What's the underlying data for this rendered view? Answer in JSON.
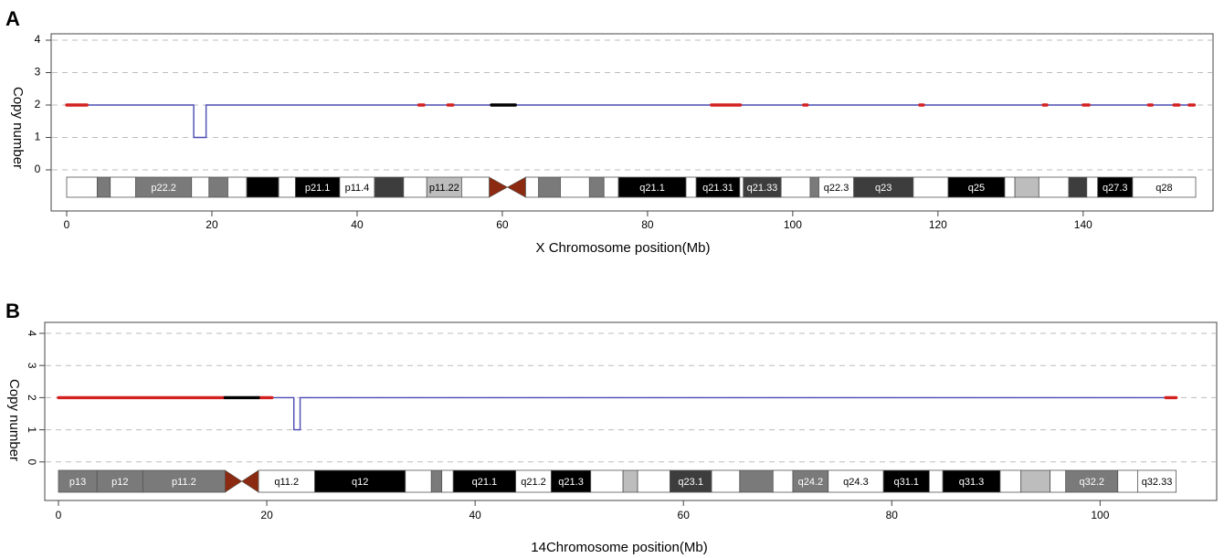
{
  "colors": {
    "cn_line": "#4b4bb4",
    "loss_marker": "#d42020",
    "centromere_marker": "#000000",
    "grid": "#bdbdbd",
    "centromere_fill": "#8b2a10",
    "band_black": "#000000",
    "band_dark": "#3d3d3d",
    "band_mid": "#7a7a7a",
    "band_light": "#bdbdbd",
    "band_white": "#ffffff"
  },
  "chart_data": [
    {
      "panel_label": "A",
      "type": "line",
      "ylabel": "Copy number",
      "xlabel": "X Chromosome position(Mb)",
      "xlim": [
        0,
        156
      ],
      "ylim": [
        0,
        4
      ],
      "x_ticks": [
        "0",
        "20",
        "40",
        "60",
        "80",
        "100",
        "120",
        "140"
      ],
      "y_ticks": [
        "0",
        "1",
        "2",
        "3",
        "4"
      ],
      "grid": "dashed horizontal",
      "series": [
        {
          "points": [
            [
              0,
              2
            ],
            [
              17.5,
              2
            ],
            [
              17.5,
              1
            ],
            [
              19.2,
              1
            ],
            [
              19.2,
              2
            ],
            [
              155.5,
              2
            ]
          ]
        }
      ],
      "markers": [
        {
          "color": "red",
          "ranges": [
            [
              0,
              2.8
            ],
            [
              48.5,
              49.2
            ],
            [
              52.5,
              53.2
            ],
            [
              88.8,
              92.8
            ],
            [
              101.5,
              102
            ],
            [
              117.5,
              118
            ],
            [
              134.5,
              135
            ],
            [
              140,
              140.8
            ],
            [
              149,
              149.5
            ],
            [
              152.5,
              153.2
            ],
            [
              154.6,
              155.3
            ]
          ]
        },
        {
          "color": "black",
          "ranges": [
            [
              58.5,
              61.8
            ]
          ]
        }
      ],
      "ideogram": {
        "centromere": [
          58.2,
          63.2
        ],
        "bands": [
          {
            "start": 0,
            "end": 4.2,
            "stain": "white",
            "label": ""
          },
          {
            "start": 4.2,
            "end": 6,
            "stain": "mid",
            "label": ""
          },
          {
            "start": 6,
            "end": 9.5,
            "stain": "white",
            "label": ""
          },
          {
            "start": 9.5,
            "end": 17.2,
            "stain": "mid",
            "label": "p22.2"
          },
          {
            "start": 17.2,
            "end": 19.6,
            "stain": "white",
            "label": ""
          },
          {
            "start": 19.6,
            "end": 22.2,
            "stain": "mid",
            "label": ""
          },
          {
            "start": 22.2,
            "end": 24.8,
            "stain": "white",
            "label": ""
          },
          {
            "start": 24.8,
            "end": 29.2,
            "stain": "black",
            "label": ""
          },
          {
            "start": 29.2,
            "end": 31.5,
            "stain": "white",
            "label": ""
          },
          {
            "start": 31.5,
            "end": 37.6,
            "stain": "black",
            "label": "p21.1"
          },
          {
            "start": 37.6,
            "end": 42.4,
            "stain": "white",
            "label": "p11.4"
          },
          {
            "start": 42.4,
            "end": 46.4,
            "stain": "dark",
            "label": ""
          },
          {
            "start": 46.4,
            "end": 49.6,
            "stain": "white",
            "label": ""
          },
          {
            "start": 49.6,
            "end": 54.4,
            "stain": "light",
            "label": "p11.22"
          },
          {
            "start": 54.4,
            "end": 58.2,
            "stain": "white",
            "label": ""
          },
          {
            "start": 63.2,
            "end": 65,
            "stain": "white",
            "label": ""
          },
          {
            "start": 65,
            "end": 68,
            "stain": "mid",
            "label": ""
          },
          {
            "start": 68,
            "end": 72,
            "stain": "white",
            "label": ""
          },
          {
            "start": 72,
            "end": 74,
            "stain": "mid",
            "label": ""
          },
          {
            "start": 74,
            "end": 76,
            "stain": "white",
            "label": ""
          },
          {
            "start": 76,
            "end": 85.3,
            "stain": "black",
            "label": "q21.1"
          },
          {
            "start": 85.3,
            "end": 86.7,
            "stain": "white",
            "label": ""
          },
          {
            "start": 86.7,
            "end": 92.7,
            "stain": "black",
            "label": "q21.31"
          },
          {
            "start": 92.7,
            "end": 93.2,
            "stain": "white",
            "label": ""
          },
          {
            "start": 93.2,
            "end": 98.4,
            "stain": "dark",
            "label": "q21.33"
          },
          {
            "start": 98.4,
            "end": 102.4,
            "stain": "white",
            "label": ""
          },
          {
            "start": 102.4,
            "end": 103.6,
            "stain": "mid",
            "label": ""
          },
          {
            "start": 103.6,
            "end": 108.4,
            "stain": "white",
            "label": "q22.3"
          },
          {
            "start": 108.4,
            "end": 116.6,
            "stain": "dark",
            "label": "q23"
          },
          {
            "start": 116.6,
            "end": 121.4,
            "stain": "white",
            "label": ""
          },
          {
            "start": 121.4,
            "end": 129.2,
            "stain": "black",
            "label": "q25"
          },
          {
            "start": 129.2,
            "end": 130.6,
            "stain": "white",
            "label": ""
          },
          {
            "start": 130.6,
            "end": 133.9,
            "stain": "light",
            "label": ""
          },
          {
            "start": 133.9,
            "end": 138,
            "stain": "white",
            "label": ""
          },
          {
            "start": 138,
            "end": 140.5,
            "stain": "dark",
            "label": ""
          },
          {
            "start": 140.5,
            "end": 142,
            "stain": "white",
            "label": ""
          },
          {
            "start": 142,
            "end": 146.8,
            "stain": "black",
            "label": "q27.3"
          },
          {
            "start": 146.8,
            "end": 155.5,
            "stain": "white",
            "label": "q28"
          }
        ]
      }
    },
    {
      "panel_label": "B",
      "type": "line",
      "ylabel": "Copy number",
      "xlabel": "14Chromosome position(Mb)",
      "xlim": [
        0,
        109
      ],
      "ylim": [
        0,
        4
      ],
      "x_ticks": [
        "0",
        "20",
        "40",
        "60",
        "80",
        "100"
      ],
      "y_ticks": [
        "0",
        "1",
        "2",
        "3",
        "4"
      ],
      "grid": "dashed horizontal",
      "series": [
        {
          "points": [
            [
              0,
              2
            ],
            [
              22.6,
              2
            ],
            [
              22.6,
              1
            ],
            [
              23.2,
              1
            ],
            [
              23.2,
              2
            ],
            [
              107.3,
              2
            ]
          ]
        }
      ],
      "markers": [
        {
          "color": "red",
          "ranges": [
            [
              0,
              16
            ],
            [
              19.2,
              20.5
            ],
            [
              106.3,
              107.3
            ]
          ]
        },
        {
          "color": "black",
          "ranges": [
            [
              16,
              19.2
            ]
          ]
        }
      ],
      "ideogram": {
        "centromere": [
          16,
          19.2
        ],
        "bands": [
          {
            "start": 0,
            "end": 3.7,
            "stain": "mid",
            "label": "p13"
          },
          {
            "start": 3.7,
            "end": 8.1,
            "stain": "mid",
            "label": "p12"
          },
          {
            "start": 8.1,
            "end": 16,
            "stain": "mid",
            "label": "p11.2"
          },
          {
            "start": 19.2,
            "end": 24.6,
            "stain": "white",
            "label": "q11.2"
          },
          {
            "start": 24.6,
            "end": 33.3,
            "stain": "black",
            "label": "q12"
          },
          {
            "start": 33.3,
            "end": 35.8,
            "stain": "white",
            "label": ""
          },
          {
            "start": 35.8,
            "end": 36.8,
            "stain": "mid",
            "label": ""
          },
          {
            "start": 36.8,
            "end": 37.9,
            "stain": "white",
            "label": ""
          },
          {
            "start": 37.9,
            "end": 43.9,
            "stain": "black",
            "label": "q21.1"
          },
          {
            "start": 43.9,
            "end": 47.3,
            "stain": "white",
            "label": "q21.2"
          },
          {
            "start": 47.3,
            "end": 51.1,
            "stain": "black",
            "label": "q21.3"
          },
          {
            "start": 51.1,
            "end": 54.2,
            "stain": "white",
            "label": ""
          },
          {
            "start": 54.2,
            "end": 55.6,
            "stain": "light",
            "label": ""
          },
          {
            "start": 55.6,
            "end": 58.7,
            "stain": "white",
            "label": ""
          },
          {
            "start": 58.7,
            "end": 62.7,
            "stain": "dark",
            "label": "q23.1"
          },
          {
            "start": 62.7,
            "end": 65.4,
            "stain": "white",
            "label": ""
          },
          {
            "start": 65.4,
            "end": 68.6,
            "stain": "mid",
            "label": ""
          },
          {
            "start": 68.6,
            "end": 70.5,
            "stain": "white",
            "label": ""
          },
          {
            "start": 70.5,
            "end": 73.9,
            "stain": "mid",
            "label": "q24.2"
          },
          {
            "start": 73.9,
            "end": 79.2,
            "stain": "white",
            "label": "q24.3"
          },
          {
            "start": 79.2,
            "end": 83.6,
            "stain": "black",
            "label": "q31.1"
          },
          {
            "start": 83.6,
            "end": 84.9,
            "stain": "white",
            "label": ""
          },
          {
            "start": 84.9,
            "end": 90.4,
            "stain": "black",
            "label": "q31.3"
          },
          {
            "start": 90.4,
            "end": 92.4,
            "stain": "white",
            "label": ""
          },
          {
            "start": 92.4,
            "end": 95.2,
            "stain": "light",
            "label": ""
          },
          {
            "start": 95.2,
            "end": 96.7,
            "stain": "white",
            "label": ""
          },
          {
            "start": 96.7,
            "end": 101.7,
            "stain": "mid",
            "label": "q32.2"
          },
          {
            "start": 101.7,
            "end": 103.6,
            "stain": "white",
            "label": ""
          },
          {
            "start": 103.6,
            "end": 107.3,
            "stain": "white",
            "label": "q32.33"
          }
        ]
      }
    }
  ]
}
